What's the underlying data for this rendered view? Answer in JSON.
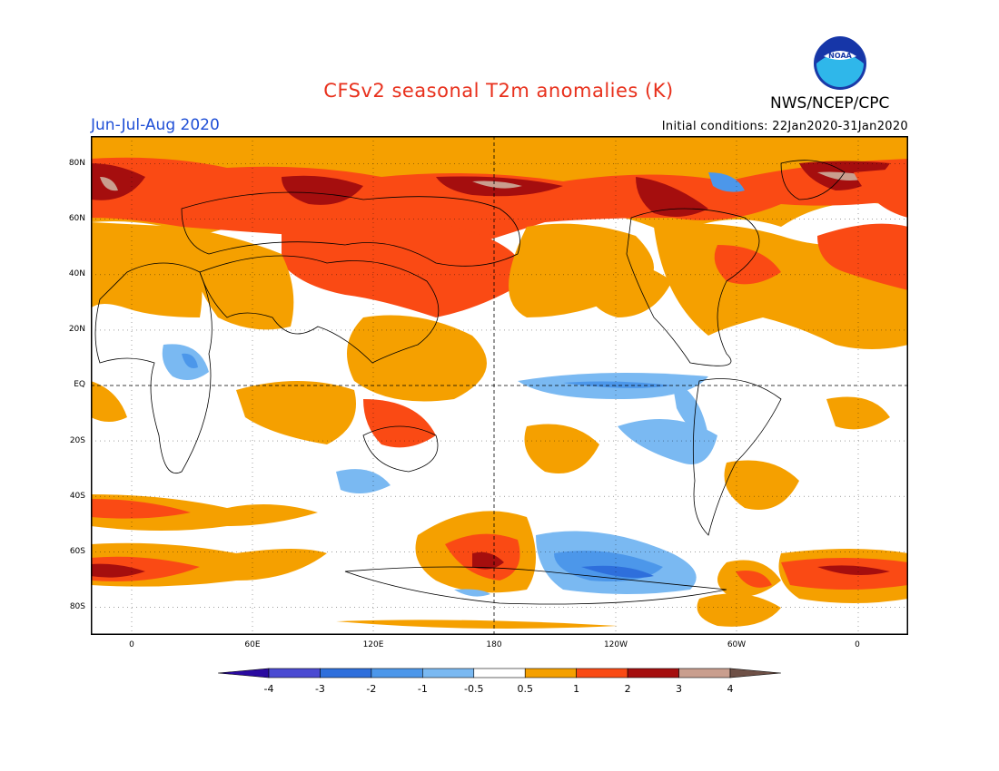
{
  "header": {
    "title": "CFSv2 seasonal T2m anomalies (K)",
    "season": "Jun-Jul-Aug 2020",
    "initial_conditions": "Initial conditions: 22Jan2020-31Jan2020",
    "org": "NWS/NCEP/CPC",
    "logo_text": "NOAA"
  },
  "axes": {
    "lat_labels": [
      "80N",
      "60N",
      "40N",
      "20N",
      "EQ",
      "20S",
      "40S",
      "60S",
      "80S"
    ],
    "lon_labels": [
      "0",
      "60E",
      "120E",
      "180",
      "120W",
      "60W",
      "0"
    ]
  },
  "colorbar": {
    "labels": [
      "-4",
      "-3",
      "-2",
      "-1",
      "-0.5",
      "0.5",
      "1",
      "2",
      "3",
      "4"
    ],
    "colors": [
      "#2a0aa0",
      "#4a4ad2",
      "#2e6fdc",
      "#4c97ea",
      "#7ab9f2",
      "#ffffff",
      "#f5a000",
      "#fa4a14",
      "#a50e0e",
      "#c99e8e",
      "#6e5046"
    ]
  },
  "colors": {
    "title": "#e8301c",
    "season": "#1f4fd6"
  }
}
